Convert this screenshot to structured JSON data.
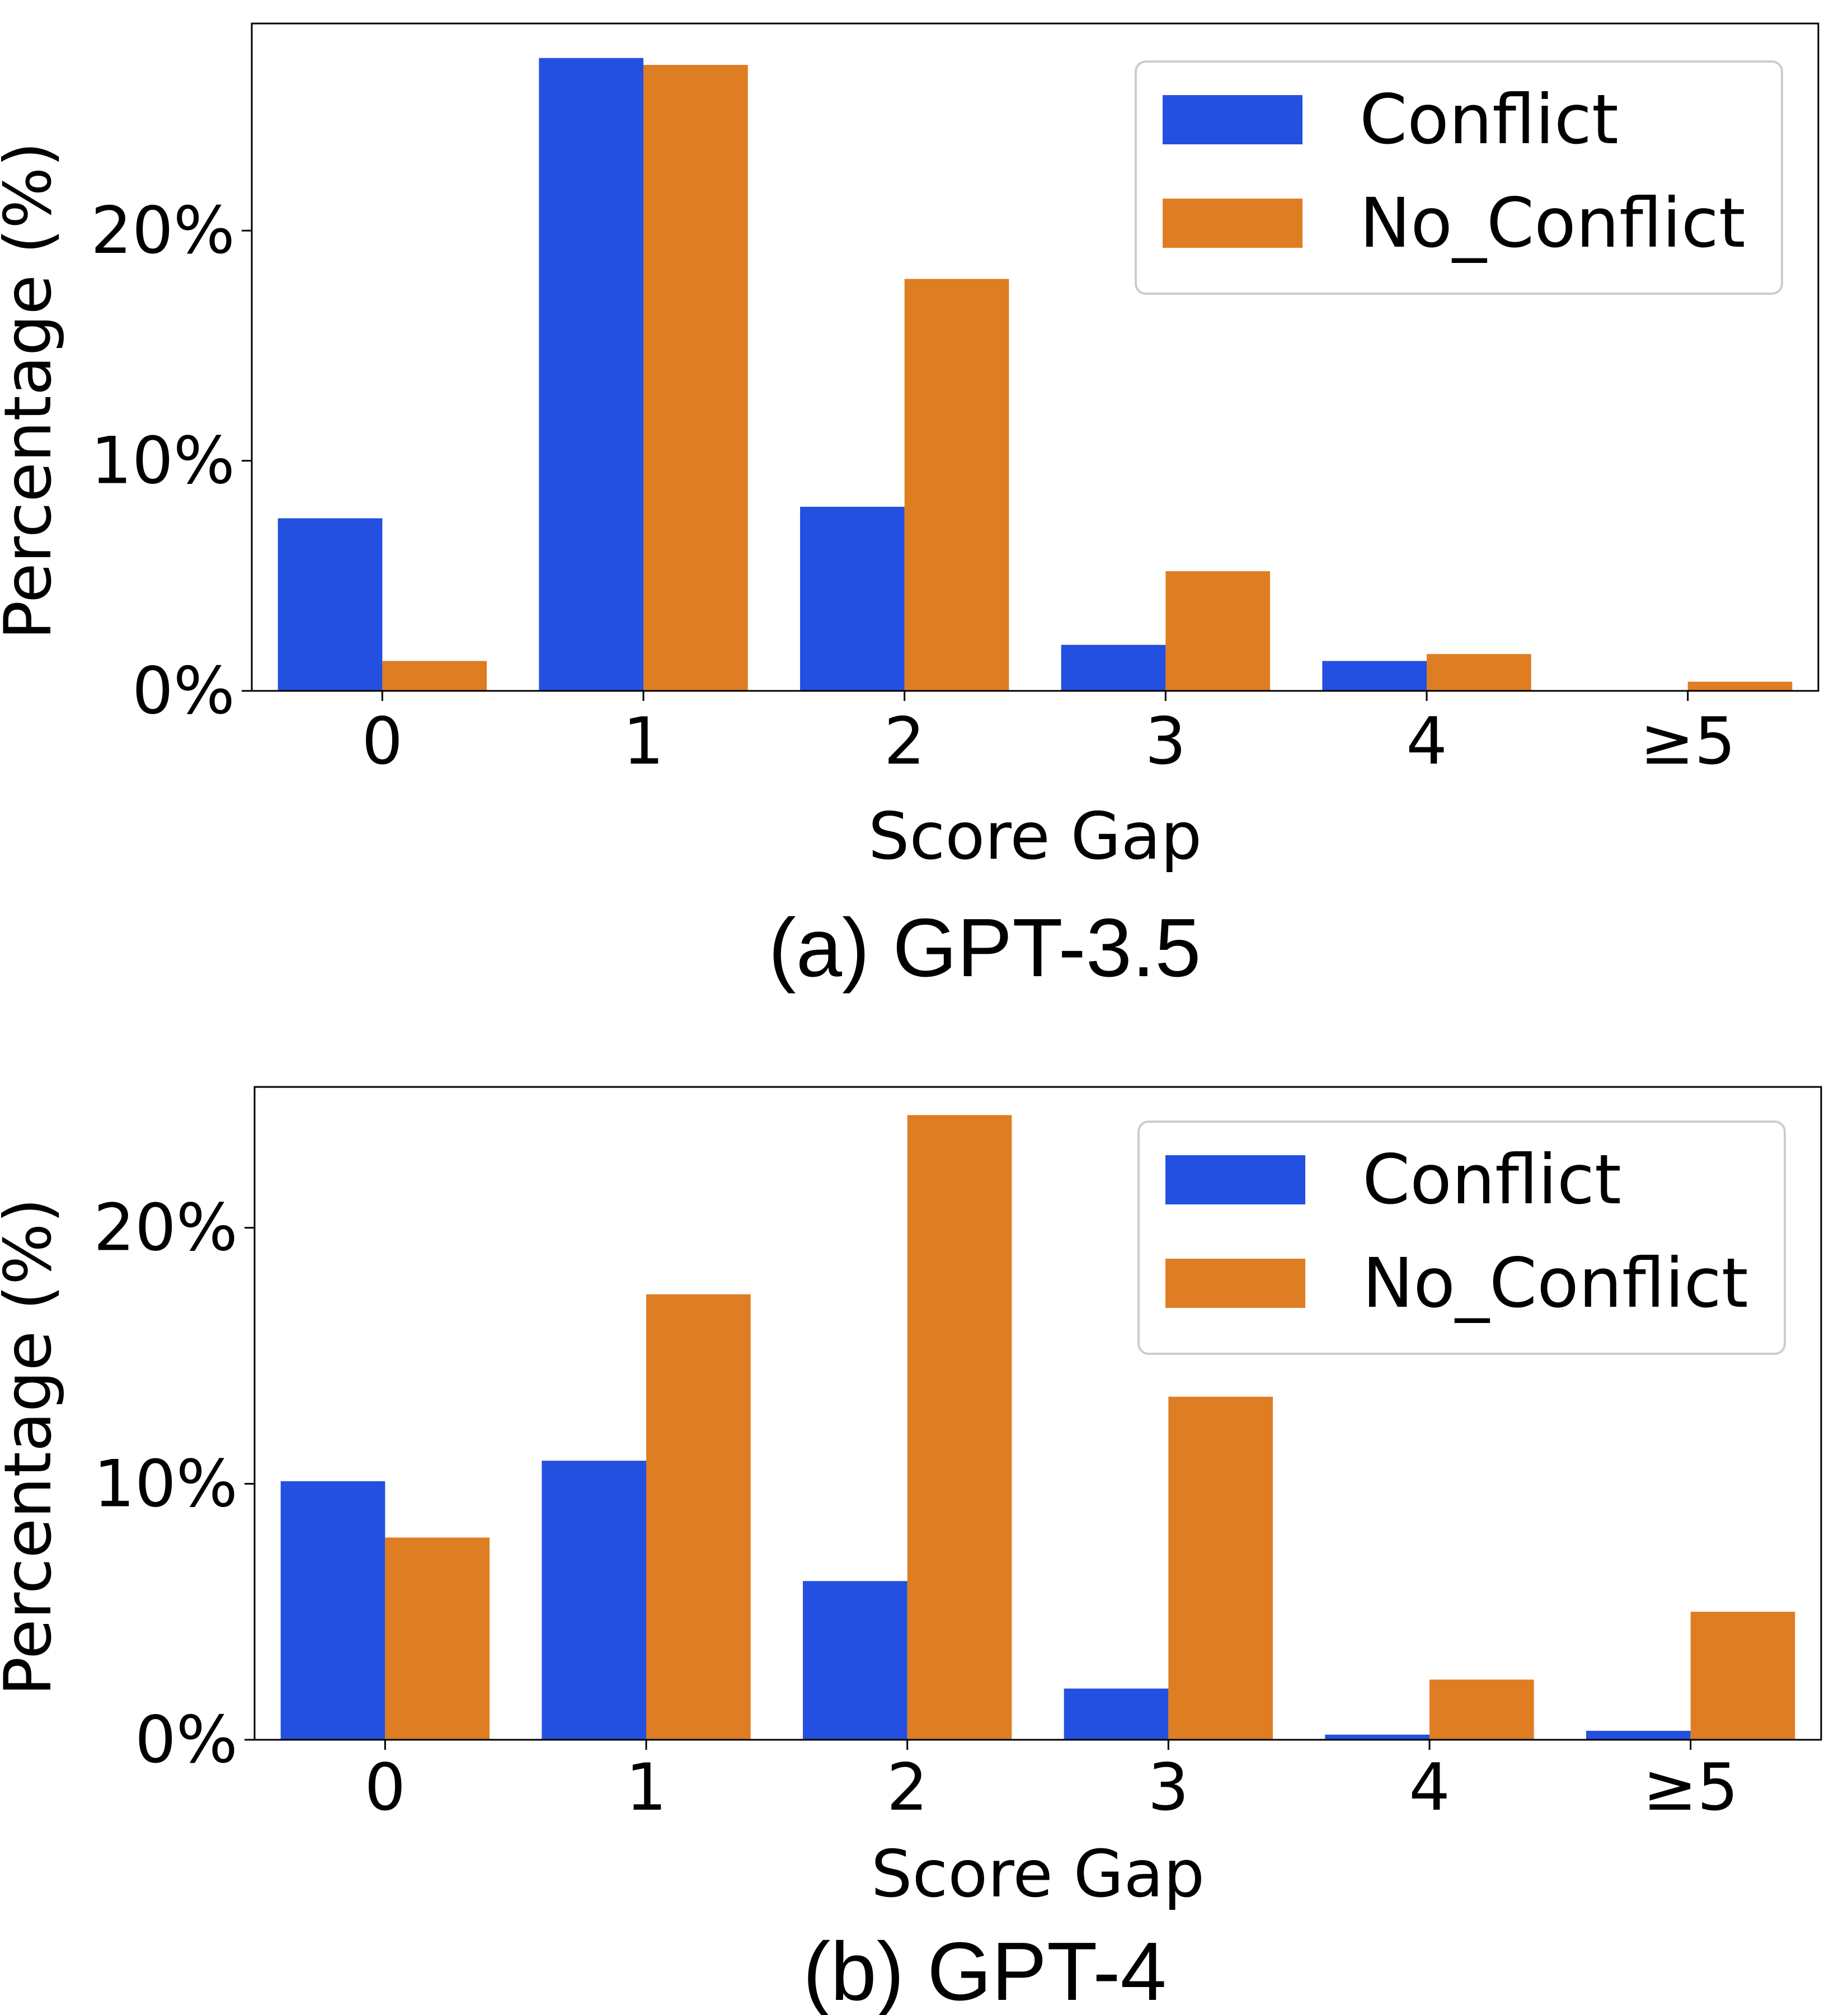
{
  "colors": {
    "conflict": "#2350E0",
    "no_conflict": "#DF7D22",
    "axis": "#000000",
    "legend_border": "#CCCCCC"
  },
  "chart_data": [
    {
      "type": "bar",
      "title": "(a) GPT-3.5",
      "xlabel": "Score Gap",
      "ylabel": "Percentage (%)",
      "categories": [
        "0",
        "1",
        "2",
        "3",
        "4",
        "≥5"
      ],
      "ylim": [
        0,
        29
      ],
      "yticks": [
        0,
        10,
        20
      ],
      "ytick_labels": [
        "0%",
        "10%",
        "20%"
      ],
      "legend": {
        "position": "top-right",
        "entries": [
          "Conflict",
          "No_Conflict"
        ]
      },
      "series": [
        {
          "name": "Conflict",
          "values": [
            7.5,
            27.5,
            8.0,
            2.0,
            1.3,
            0.0
          ]
        },
        {
          "name": "No_Conflict",
          "values": [
            1.3,
            27.2,
            17.9,
            5.2,
            1.6,
            0.4
          ]
        }
      ]
    },
    {
      "type": "bar",
      "title": "(b) GPT-4",
      "xlabel": "Score Gap",
      "ylabel": "Percentage (%)",
      "categories": [
        "0",
        "1",
        "2",
        "3",
        "4",
        "≥5"
      ],
      "ylim": [
        0,
        25.5
      ],
      "yticks": [
        0,
        10,
        20
      ],
      "ytick_labels": [
        "0%",
        "10%",
        "20%"
      ],
      "legend": {
        "position": "top-right",
        "entries": [
          "Conflict",
          "No_Conflict"
        ]
      },
      "series": [
        {
          "name": "Conflict",
          "values": [
            10.1,
            10.9,
            6.2,
            2.0,
            0.2,
            0.35
          ]
        },
        {
          "name": "No_Conflict",
          "values": [
            7.9,
            17.4,
            24.4,
            13.4,
            2.35,
            5.0
          ]
        }
      ]
    }
  ]
}
